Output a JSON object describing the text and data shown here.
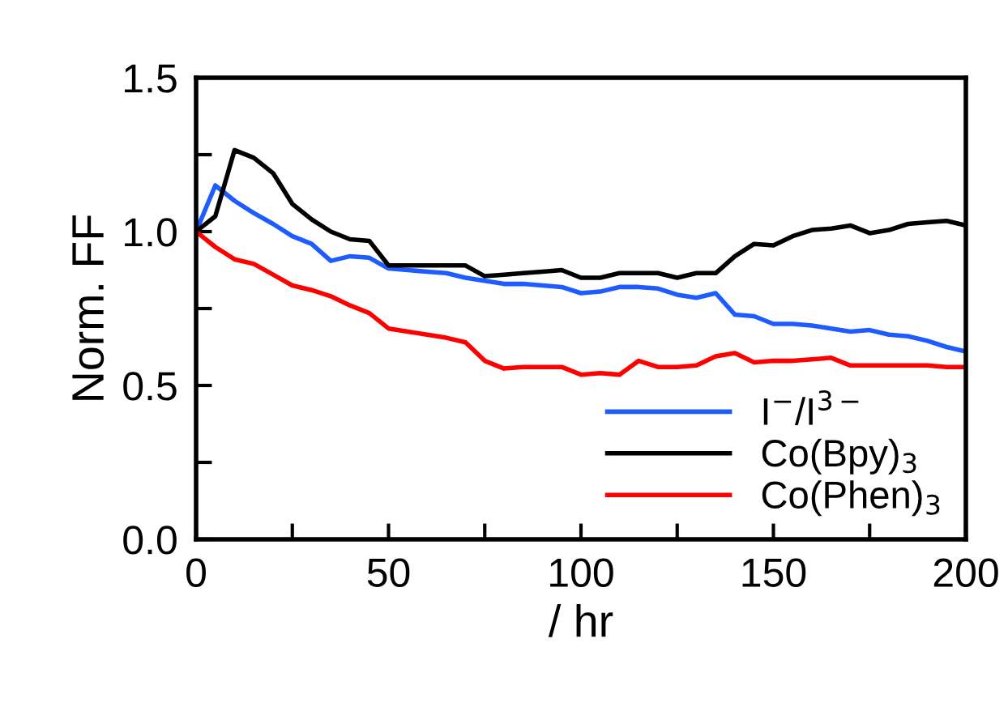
{
  "chart_data": {
    "type": "line",
    "xlabel": "/ hr",
    "ylabel": "Norm. FF",
    "x": [
      0,
      5,
      10,
      15,
      20,
      25,
      30,
      35,
      40,
      45,
      50,
      55,
      60,
      65,
      70,
      75,
      80,
      85,
      90,
      95,
      100,
      105,
      110,
      115,
      120,
      125,
      130,
      135,
      140,
      145,
      150,
      155,
      160,
      165,
      170,
      175,
      180,
      185,
      190,
      195,
      200
    ],
    "series": [
      {
        "name": "I$^{−}$/I$^{3−}$",
        "color": "#1f5cff",
        "values": [
          1.0,
          1.15,
          1.1,
          1.06,
          1.025,
          0.985,
          0.96,
          0.905,
          0.92,
          0.915,
          0.88,
          0.875,
          0.87,
          0.865,
          0.85,
          0.84,
          0.83,
          0.83,
          0.825,
          0.82,
          0.8,
          0.805,
          0.82,
          0.82,
          0.815,
          0.795,
          0.785,
          0.8,
          0.73,
          0.725,
          0.7,
          0.7,
          0.695,
          0.685,
          0.675,
          0.68,
          0.665,
          0.66,
          0.645,
          0.625,
          0.61
        ]
      },
      {
        "name": "Co(Bpy)$_{3}$",
        "color": "#000000",
        "values": [
          1.0,
          1.05,
          1.265,
          1.24,
          1.19,
          1.09,
          1.04,
          1.0,
          0.975,
          0.97,
          0.89,
          0.89,
          0.89,
          0.89,
          0.89,
          0.855,
          0.86,
          0.865,
          0.87,
          0.875,
          0.85,
          0.85,
          0.865,
          0.865,
          0.865,
          0.85,
          0.865,
          0.865,
          0.92,
          0.96,
          0.955,
          0.985,
          1.005,
          1.01,
          1.02,
          0.995,
          1.005,
          1.025,
          1.03,
          1.035,
          1.02
        ]
      },
      {
        "name": "Co(Phen)$_{3}$",
        "color": "#ff0000",
        "values": [
          1.0,
          0.95,
          0.91,
          0.895,
          0.86,
          0.825,
          0.81,
          0.79,
          0.76,
          0.735,
          0.685,
          0.675,
          0.665,
          0.655,
          0.64,
          0.58,
          0.555,
          0.56,
          0.56,
          0.56,
          0.535,
          0.54,
          0.535,
          0.58,
          0.56,
          0.56,
          0.565,
          0.595,
          0.605,
          0.575,
          0.58,
          0.58,
          0.585,
          0.59,
          0.565,
          0.565,
          0.565,
          0.565,
          0.565,
          0.56,
          0.56
        ]
      }
    ],
    "xlim": [
      0,
      200
    ],
    "ylim": [
      0,
      1.5
    ],
    "xticks": [
      0,
      {
        "value": 25,
        "label": null
      },
      50,
      {
        "value": 75,
        "label": null
      },
      100,
      {
        "value": 125,
        "label": null
      },
      150,
      {
        "value": 175,
        "label": null
      },
      200
    ],
    "yticks": [
      {
        "value": 0,
        "label": "0.0"
      },
      {
        "value": 0.25,
        "label": null
      },
      {
        "value": 0.5,
        "label": "0.5"
      },
      {
        "value": 0.75,
        "label": null
      },
      {
        "value": 1.0,
        "label": "1.0"
      },
      {
        "value": 1.25,
        "label": null
      },
      {
        "value": 1.5,
        "label": "1.5"
      }
    ],
    "legend": "bottom right",
    "grid": false,
    "marker": "none",
    "line_style": "solid"
  }
}
